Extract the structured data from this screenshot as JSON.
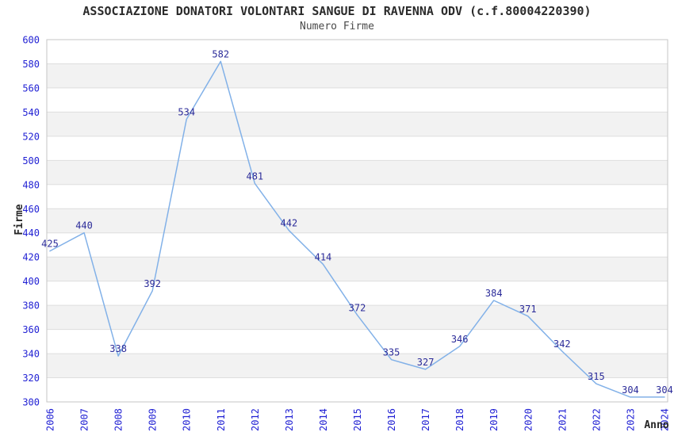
{
  "header": {
    "title": "ASSOCIAZIONE DONATORI VOLONTARI SANGUE DI RAVENNA ODV (c.f.80004220390)",
    "subtitle": "Numero Firme"
  },
  "chart_data": {
    "type": "line",
    "title": "Numero Firme",
    "xlabel": "Anno",
    "ylabel": "Firme",
    "categories": [
      "2006",
      "2007",
      "2008",
      "2009",
      "2010",
      "2011",
      "2012",
      "2013",
      "2014",
      "2015",
      "2016",
      "2017",
      "2018",
      "2019",
      "2020",
      "2021",
      "2022",
      "2023",
      "2024"
    ],
    "values": [
      425,
      440,
      338,
      392,
      534,
      582,
      481,
      442,
      414,
      372,
      335,
      327,
      346,
      384,
      371,
      342,
      315,
      304,
      304
    ],
    "ylim": [
      300,
      600
    ],
    "ytick_step": 20,
    "ytick_labels": [
      "600",
      "580",
      "560",
      "540",
      "520",
      "500",
      "480",
      "460",
      "440",
      "420",
      "400",
      "380",
      "360",
      "340",
      "320",
      "300"
    ],
    "grid": true,
    "band_fill": "alternating-horizontal",
    "legend": "none",
    "point_labels_shown": true
  },
  "colors": {
    "line": "#82b1e8",
    "tick_label": "#2222d4",
    "point_label": "#2b2b99",
    "band": "#f2f2f2",
    "gridline": "#dedede",
    "plot_border": "#c6c6c6",
    "title": "#2b2b2b",
    "subtitle": "#4a4a4a",
    "axis_title": "#262626"
  }
}
